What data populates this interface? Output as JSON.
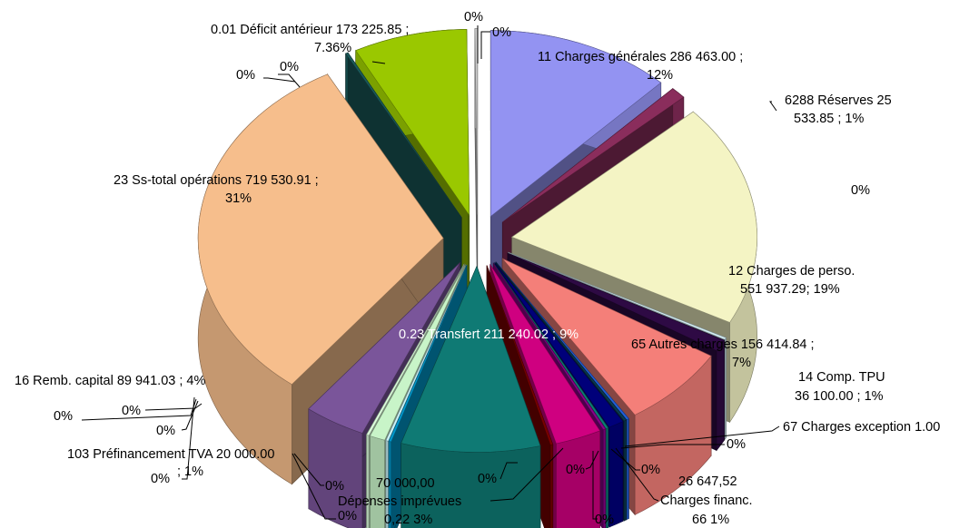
{
  "chart_data": {
    "type": "pie",
    "variant": "3d-exploded",
    "title": "",
    "labels_shown": [
      "0.01 Déficit antérieur 173 225.85  ;",
      "7.36%",
      "11 Charges générales 286 463.00  ;",
      "12%",
      "6288 Réserves 25",
      "533.85  ; 1%",
      "0%",
      "12 Charges de perso.",
      "551 937.29; 19%",
      "65 Autres charges  156 414.84  ;",
      "7%",
      "14 Comp. TPU",
      "36 100.00  ; 1%",
      "67 Charges exception 1.00",
      "26 647,52",
      "Charges financ.",
      "66 1%",
      "70 000,00",
      "Dépenses imprévues",
      "0,22 3%",
      "0.23 Transfert 211 240.02  ; 9%",
      "23 Ss-total opérations 719 530.91  ;",
      "31%",
      "16 Remb. capital  89 941.03  ; 4%",
      "103 Préfinancement TVA 20 000.00",
      "; 1%"
    ],
    "slices": [
      {
        "label": "11 Charges générales",
        "value": 286463.0,
        "percent": 12,
        "color": "#9393f2"
      },
      {
        "label": "6288 Réserves",
        "value": 25533.85,
        "percent": 1,
        "color": "#8a2d5c"
      },
      {
        "label": "12 Charges de perso.",
        "value": 551937.29,
        "percent": 19,
        "color": "#f4f4c4"
      },
      {
        "label": "",
        "value": null,
        "percent": 0,
        "color": "#d4eef4"
      },
      {
        "label": "14 Comp. TPU",
        "value": 36100.0,
        "percent": 1,
        "color": "#2e0a44"
      },
      {
        "label": "65 Autres charges",
        "value": 156414.84,
        "percent": 7,
        "color": "#f47f79"
      },
      {
        "label": "67 Charges exception",
        "value": 1.0,
        "percent": 0,
        "color": "#225fd8"
      },
      {
        "label": "",
        "value": null,
        "percent": 0,
        "color": "#0a3a52"
      },
      {
        "label": "66 Charges financ.",
        "value": 26647.52,
        "percent": 1,
        "color": "#00007a"
      },
      {
        "label": "",
        "value": null,
        "percent": 0,
        "color": "#0a7d74"
      },
      {
        "label": "",
        "value": null,
        "percent": 0,
        "color": "#8a008a"
      },
      {
        "label": "0,22 Dépenses imprévues",
        "value": 70000.0,
        "percent": 3,
        "color": "#cf0080"
      },
      {
        "label": "",
        "value": null,
        "percent": 0,
        "color": "#7a0000"
      },
      {
        "label": "0.23 Transfert",
        "value": 211240.02,
        "percent": 9,
        "color": "#0f7a74"
      },
      {
        "label": "",
        "value": null,
        "percent": 0,
        "color": "#0098cc"
      },
      {
        "label": "",
        "value": null,
        "percent": 0,
        "color": "#c9f4fa"
      },
      {
        "label": "103 Préfinancement TVA",
        "value": 20000.0,
        "percent": 1,
        "color": "#c8f4c8"
      },
      {
        "label": "",
        "value": null,
        "percent": 0,
        "color": "#ddffdd"
      },
      {
        "label": "16 Remb. capital",
        "value": 89941.03,
        "percent": 4,
        "color": "#7a559a"
      },
      {
        "label": "23 Ss-total opérations",
        "value": 719530.91,
        "percent": 31,
        "color": "#f6be8c"
      },
      {
        "label": "",
        "value": null,
        "percent": 0,
        "color": "#1a5a5a"
      },
      {
        "label": "0.01 Déficit antérieur",
        "value": 173225.85,
        "percent": 7.36,
        "color": "#9ac800"
      },
      {
        "label": "",
        "value": null,
        "percent": 0,
        "color": "#cccccc"
      }
    ]
  }
}
